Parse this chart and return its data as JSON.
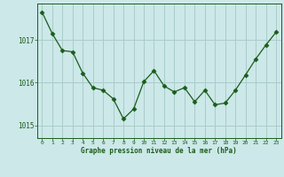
{
  "x": [
    0,
    1,
    2,
    3,
    4,
    5,
    6,
    7,
    8,
    9,
    10,
    11,
    12,
    13,
    14,
    15,
    16,
    17,
    18,
    19,
    20,
    21,
    22,
    23
  ],
  "y": [
    1017.65,
    1017.15,
    1016.75,
    1016.72,
    1016.22,
    1015.88,
    1015.82,
    1015.62,
    1015.15,
    1015.38,
    1016.02,
    1016.28,
    1015.92,
    1015.78,
    1015.88,
    1015.55,
    1015.82,
    1015.48,
    1015.52,
    1015.82,
    1016.18,
    1016.55,
    1016.88,
    1017.18
  ],
  "ylim": [
    1014.7,
    1017.85
  ],
  "yticks": [
    1015,
    1016,
    1017
  ],
  "xticks": [
    0,
    1,
    2,
    3,
    4,
    5,
    6,
    7,
    8,
    9,
    10,
    11,
    12,
    13,
    14,
    15,
    16,
    17,
    18,
    19,
    20,
    21,
    22,
    23
  ],
  "line_color": "#1a5c1a",
  "marker": "D",
  "marker_size": 2.5,
  "bg_color": "#cce8e8",
  "grid_color": "#aacccc",
  "xlabel": "Graphe pression niveau de la mer (hPa)",
  "xlabel_color": "#1a5c1a",
  "tick_color": "#1a5c1a",
  "figsize": [
    3.2,
    2.0
  ],
  "dpi": 100
}
